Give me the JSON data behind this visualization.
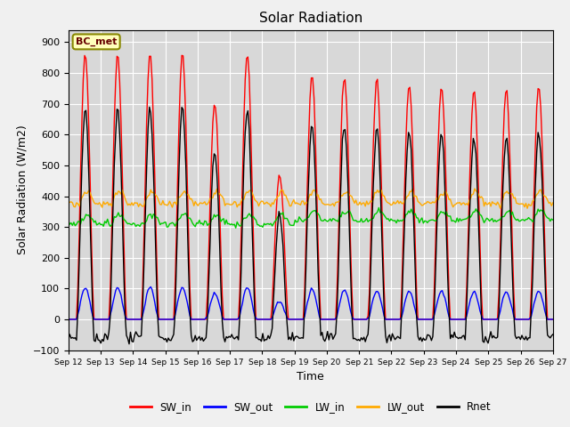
{
  "title": "Solar Radiation",
  "xlabel": "Time",
  "ylabel": "Solar Radiation (W/m2)",
  "ylim": [
    -100,
    940
  ],
  "yticks": [
    -100,
    0,
    100,
    200,
    300,
    400,
    500,
    600,
    700,
    800,
    900
  ],
  "date_start": 12,
  "date_end": 27,
  "annotation": "BC_met",
  "colors": {
    "SW_in": "#ff0000",
    "SW_out": "#0000ff",
    "LW_in": "#00cc00",
    "LW_out": "#ffaa00",
    "Rnet": "#000000"
  },
  "bg_color": "#d8d8d8",
  "fig_color": "#f0f0f0",
  "line_width": 1.0,
  "peak_SW": [
    865,
    860,
    862,
    865,
    700,
    860,
    470,
    790,
    790,
    780,
    760,
    755,
    745,
    740,
    760
  ],
  "base_LW_in": 310,
  "base_LW_out": 375,
  "tick_labels": [
    "Sep 12",
    "Sep 13",
    "Sep 14",
    "Sep 15",
    "Sep 16",
    "Sep 17",
    "Sep 18",
    "Sep 19",
    "Sep 20",
    "Sep 21",
    "Sep 22",
    "Sep 23",
    "Sep 24",
    "Sep 25",
    "Sep 26",
    "Sep 27"
  ]
}
